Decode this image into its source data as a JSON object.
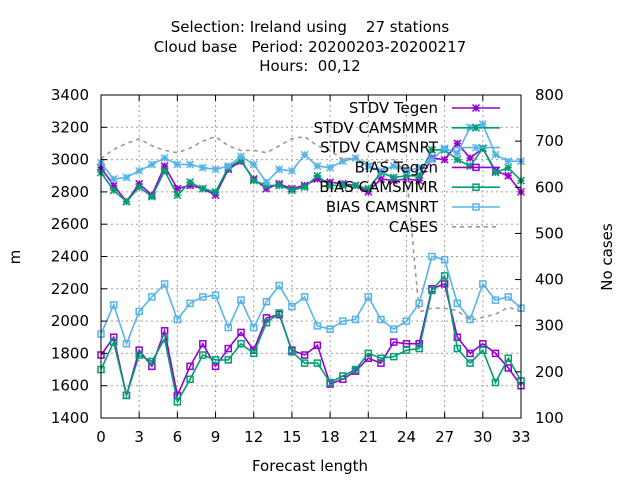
{
  "chart_data": {
    "type": "line",
    "title": [
      "Selection: Ireland using    27 stations",
      "Cloud base   Period: 20200203-20200217",
      "Hours:  00,12"
    ],
    "xlabel": "Forecast length",
    "ylabel": "m",
    "y2label": "No cases",
    "xlim": [
      0,
      33
    ],
    "ylim": [
      1400,
      3400
    ],
    "y2lim": [
      100,
      800
    ],
    "xticks": [
      "0",
      "3",
      "6",
      "9",
      "12",
      "15",
      "18",
      "21",
      "24",
      "27",
      "30",
      "33"
    ],
    "yticks": [
      "1400",
      "1600",
      "1800",
      "2000",
      "2200",
      "2400",
      "2600",
      "2800",
      "3000",
      "3200",
      "3400"
    ],
    "y2ticks": [
      "100",
      "200",
      "300",
      "400",
      "500",
      "600",
      "700",
      "800"
    ],
    "grid": true,
    "legend_position": "top-right",
    "x": [
      0,
      1,
      2,
      3,
      4,
      5,
      6,
      7,
      8,
      9,
      10,
      11,
      12,
      13,
      14,
      15,
      16,
      17,
      18,
      19,
      20,
      21,
      22,
      23,
      24,
      25,
      26,
      27,
      28,
      29,
      30,
      31,
      32,
      33
    ],
    "series": [
      {
        "name": "STDV Tegen",
        "color": "#9400d3",
        "marker": "star",
        "axis": "y1",
        "values": [
          2950,
          2840,
          2740,
          2850,
          2780,
          2960,
          2820,
          2840,
          2820,
          2780,
          2940,
          2990,
          2880,
          2820,
          2850,
          2820,
          2840,
          2880,
          2860,
          2850,
          2840,
          2800,
          2880,
          2870,
          2880,
          2870,
          3010,
          3000,
          3100,
          3010,
          3070,
          2930,
          2900,
          2800
        ]
      },
      {
        "name": "STDV CAMSMMR",
        "color": "#009e73",
        "marker": "star",
        "axis": "y1",
        "values": [
          2920,
          2810,
          2740,
          2830,
          2770,
          2930,
          2780,
          2860,
          2820,
          2800,
          2950,
          3000,
          2870,
          2840,
          2840,
          2810,
          2830,
          2900,
          2840,
          2840,
          2840,
          2820,
          2920,
          2890,
          2900,
          2900,
          3060,
          3060,
          3000,
          2960,
          3070,
          2920,
          2950,
          2870
        ]
      },
      {
        "name": "STDV CAMSNRT",
        "color": "#56b4e9",
        "marker": "star",
        "axis": "y1",
        "values": [
          2980,
          2880,
          2890,
          2930,
          2970,
          3010,
          2970,
          2970,
          2950,
          2940,
          2960,
          3020,
          2970,
          2860,
          2940,
          2930,
          3030,
          2960,
          2950,
          2990,
          3010,
          2960,
          2930,
          2960,
          2930,
          2950,
          3000,
          3070,
          3040,
          3200,
          3220,
          3030,
          2990,
          2990
        ]
      },
      {
        "name": "BIAS Tegen",
        "color": "#9400d3",
        "marker": "square",
        "axis": "y1",
        "values": [
          1790,
          1900,
          1540,
          1820,
          1720,
          1940,
          1540,
          1720,
          1860,
          1720,
          1830,
          1930,
          1820,
          2020,
          2040,
          1820,
          1790,
          1850,
          1610,
          1640,
          1690,
          1770,
          1740,
          1870,
          1860,
          1860,
          2200,
          2230,
          1900,
          1800,
          1860,
          1800,
          1710,
          1600
        ]
      },
      {
        "name": "BIAS CAMSMMR",
        "color": "#009e73",
        "marker": "square",
        "axis": "y1",
        "values": [
          1700,
          1870,
          1540,
          1790,
          1750,
          1890,
          1500,
          1640,
          1790,
          1760,
          1760,
          1860,
          1800,
          1990,
          2050,
          1810,
          1740,
          1740,
          1620,
          1660,
          1700,
          1800,
          1770,
          1780,
          1820,
          1830,
          2190,
          2280,
          1830,
          1740,
          1820,
          1620,
          1770,
          1630
        ]
      },
      {
        "name": "BIAS CAMSNRT",
        "color": "#56b4e9",
        "marker": "square",
        "axis": "y1",
        "values": [
          1920,
          2100,
          1860,
          2060,
          2150,
          2230,
          2010,
          2110,
          2150,
          2160,
          1960,
          2130,
          1960,
          2120,
          2220,
          2090,
          2150,
          1970,
          1950,
          2000,
          2010,
          2150,
          2010,
          1950,
          2000,
          2110,
          2400,
          2380,
          2110,
          2010,
          2230,
          2130,
          2150,
          2080
        ]
      },
      {
        "name": "CASES",
        "color": "#999999",
        "marker": "none",
        "dashed": true,
        "axis": "y2",
        "values": [
          662,
          682,
          695,
          705,
          690,
          680,
          675,
          685,
          700,
          710,
          690,
          680,
          680,
          675,
          690,
          705,
          710,
          690,
          680,
          660,
          665,
          650,
          655,
          660,
          630,
          330,
          338,
          338,
          332,
          312,
          318,
          325,
          340,
          332
        ]
      }
    ]
  }
}
